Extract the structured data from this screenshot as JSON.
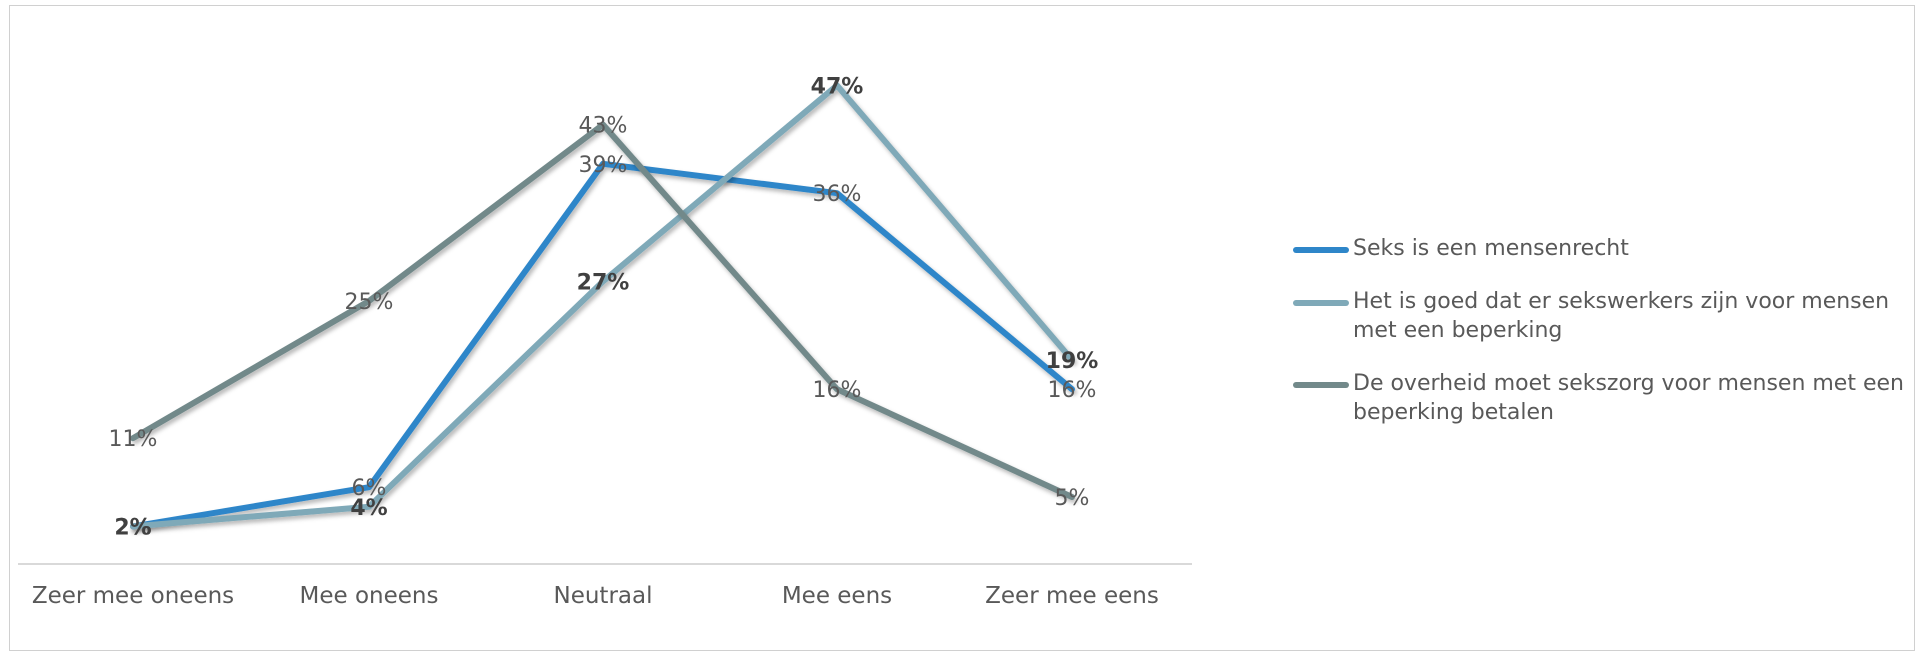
{
  "chart_data": {
    "type": "line",
    "categories": [
      "Zeer mee oneens",
      "Mee oneens",
      "Neutraal",
      "Mee eens",
      "Zeer mee eens"
    ],
    "ylim": [
      0,
      50
    ],
    "grid": false,
    "legend_position": "right",
    "series": [
      {
        "name": "Seks is een mensenrecht",
        "values": [
          2,
          6,
          39,
          36,
          16
        ],
        "labels": [
          "2%",
          "6%",
          "39%",
          "36%",
          "16%"
        ],
        "bold_labels": false,
        "color": "#2E86C9"
      },
      {
        "name": "Het is goed dat er sekswerkers zijn voor mensen met een beperking",
        "values": [
          2,
          4,
          27,
          47,
          19
        ],
        "labels": [
          "2%",
          "4%",
          "27%",
          "47%",
          "19%"
        ],
        "bold_labels": true,
        "color": "#7FA9B8"
      },
      {
        "name": "De overheid moet sekszorg voor mensen met een beperking betalen",
        "values": [
          11,
          25,
          43,
          16,
          5
        ],
        "labels": [
          "11%",
          "25%",
          "43%",
          "16%",
          "5%"
        ],
        "bold_labels": false,
        "color": "#72898A"
      }
    ]
  }
}
